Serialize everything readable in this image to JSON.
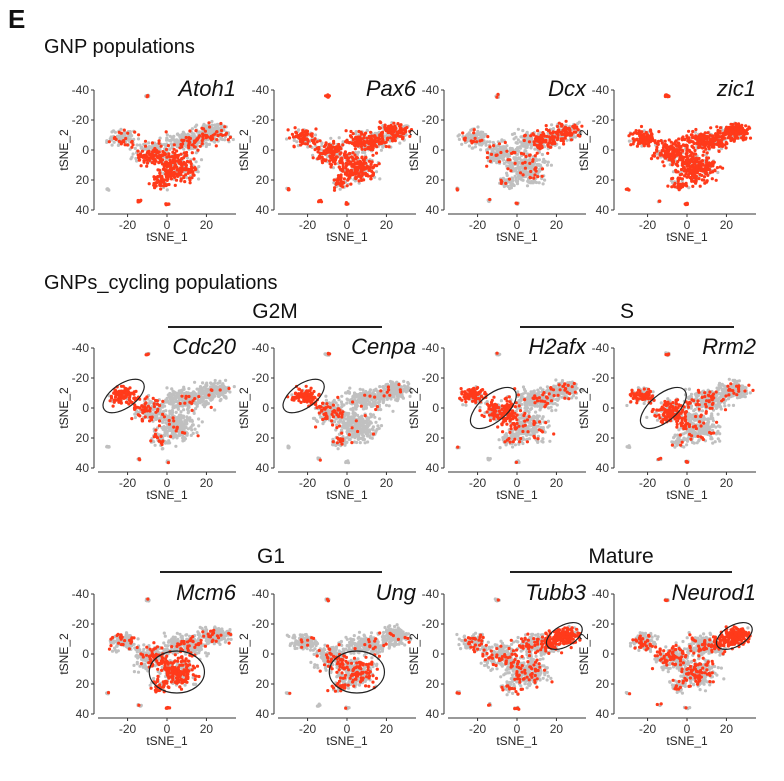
{
  "panel_letter": "E",
  "sections": [
    {
      "title": "GNP populations"
    },
    {
      "title": "GNPs_cycling populations"
    }
  ],
  "groups": [
    {
      "label": "G2M"
    },
    {
      "label": "S"
    },
    {
      "label": "G1"
    },
    {
      "label": "Mature"
    }
  ],
  "colors": {
    "background_cells": "#c0c0c0",
    "expressing_cells": "#ff3a1a",
    "axis": "#333333"
  },
  "chart_data": [
    {
      "type": "scatter",
      "gene": "Atoh1",
      "highlight": "lower-center",
      "circle": null,
      "xlabel": "tSNE_1",
      "ylabel": "tSNE_2",
      "x_ticks": [
        "-20",
        "0",
        "20"
      ],
      "y_ticks": [
        "-40",
        "-20",
        "0",
        "20",
        "40"
      ],
      "xlim": [
        -35,
        35
      ],
      "ylim": [
        -40,
        40
      ]
    },
    {
      "type": "scatter",
      "gene": "Pax6",
      "highlight": "broad",
      "circle": null,
      "xlabel": "tSNE_1",
      "ylabel": "tSNE_2",
      "x_ticks": [
        "-20",
        "0",
        "20"
      ],
      "y_ticks": [
        "-40",
        "-20",
        "0",
        "20",
        "40"
      ],
      "xlim": [
        -35,
        35
      ],
      "ylim": [
        -40,
        40
      ]
    },
    {
      "type": "scatter",
      "gene": "Dcx",
      "highlight": "sparse-right",
      "circle": null,
      "xlabel": "tSNE_1",
      "ylabel": "tSNE_2",
      "x_ticks": [
        "-20",
        "0",
        "20"
      ],
      "y_ticks": [
        "-40",
        "-20",
        "0",
        "20",
        "40"
      ],
      "xlim": [
        -35,
        35
      ],
      "ylim": [
        -40,
        40
      ]
    },
    {
      "type": "scatter",
      "gene": "zic1",
      "highlight": "dense-all",
      "circle": null,
      "xlabel": "tSNE_1",
      "ylabel": "tSNE_2",
      "x_ticks": [
        "-20",
        "0",
        "20"
      ],
      "y_ticks": [
        "-40",
        "-20",
        "0",
        "20",
        "40"
      ],
      "xlim": [
        -35,
        35
      ],
      "ylim": [
        -40,
        40
      ]
    },
    {
      "type": "scatter",
      "gene": "Cdc20",
      "highlight": "left-cluster",
      "circle": {
        "cx": -22,
        "cy": -8,
        "rx": 12,
        "ry": 8,
        "angle": -35
      },
      "xlabel": "tSNE_1",
      "ylabel": "tSNE_2",
      "x_ticks": [
        "-20",
        "0",
        "20"
      ],
      "y_ticks": [
        "-40",
        "-20",
        "0",
        "20",
        "40"
      ],
      "xlim": [
        -35,
        35
      ],
      "ylim": [
        -40,
        40
      ]
    },
    {
      "type": "scatter",
      "gene": "Cenpa",
      "highlight": "left-cluster",
      "circle": {
        "cx": -22,
        "cy": -8,
        "rx": 12,
        "ry": 8,
        "angle": -35
      },
      "xlabel": "tSNE_1",
      "ylabel": "tSNE_2",
      "x_ticks": [
        "-20",
        "0",
        "20"
      ],
      "y_ticks": [
        "-40",
        "-20",
        "0",
        "20",
        "40"
      ],
      "xlim": [
        -35,
        35
      ],
      "ylim": [
        -40,
        40
      ]
    },
    {
      "type": "scatter",
      "gene": "H2afx",
      "highlight": "left-mid",
      "circle": {
        "cx": -12,
        "cy": 0,
        "rx": 14,
        "ry": 9,
        "angle": -40
      },
      "xlabel": "tSNE_1",
      "ylabel": "tSNE_2",
      "x_ticks": [
        "-20",
        "0",
        "20"
      ],
      "y_ticks": [
        "-40",
        "-20",
        "0",
        "20",
        "40"
      ],
      "xlim": [
        -35,
        35
      ],
      "ylim": [
        -40,
        40
      ]
    },
    {
      "type": "scatter",
      "gene": "Rrm2",
      "highlight": "left-mid",
      "circle": {
        "cx": -12,
        "cy": 0,
        "rx": 14,
        "ry": 9,
        "angle": -40
      },
      "xlabel": "tSNE_1",
      "ylabel": "tSNE_2",
      "x_ticks": [
        "-20",
        "0",
        "20"
      ],
      "y_ticks": [
        "-40",
        "-20",
        "0",
        "20",
        "40"
      ],
      "xlim": [
        -35,
        35
      ],
      "ylim": [
        -40,
        40
      ]
    },
    {
      "type": "scatter",
      "gene": "Mcm6",
      "highlight": "center-cluster",
      "circle": {
        "cx": 5,
        "cy": 12,
        "rx": 14,
        "ry": 14,
        "angle": 0
      },
      "xlabel": "tSNE_1",
      "ylabel": "tSNE_2",
      "x_ticks": [
        "-20",
        "0",
        "20"
      ],
      "y_ticks": [
        "-40",
        "-20",
        "0",
        "20",
        "40"
      ],
      "xlim": [
        -35,
        35
      ],
      "ylim": [
        -40,
        40
      ]
    },
    {
      "type": "scatter",
      "gene": "Ung",
      "highlight": "center-sparse",
      "circle": {
        "cx": 5,
        "cy": 12,
        "rx": 14,
        "ry": 14,
        "angle": 0
      },
      "xlabel": "tSNE_1",
      "ylabel": "tSNE_2",
      "x_ticks": [
        "-20",
        "0",
        "20"
      ],
      "y_ticks": [
        "-40",
        "-20",
        "0",
        "20",
        "40"
      ],
      "xlim": [
        -35,
        35
      ],
      "ylim": [
        -40,
        40
      ]
    },
    {
      "type": "scatter",
      "gene": "Tubb3",
      "highlight": "right-cluster",
      "circle": {
        "cx": 24,
        "cy": -12,
        "rx": 10,
        "ry": 7,
        "angle": -30
      },
      "xlabel": "tSNE_1",
      "ylabel": "tSNE_2",
      "x_ticks": [
        "-20",
        "0",
        "20"
      ],
      "y_ticks": [
        "-40",
        "-20",
        "0",
        "20",
        "40"
      ],
      "xlim": [
        -35,
        35
      ],
      "ylim": [
        -40,
        40
      ]
    },
    {
      "type": "scatter",
      "gene": "Neurod1",
      "highlight": "right-cluster",
      "circle": {
        "cx": 24,
        "cy": -12,
        "rx": 10,
        "ry": 7,
        "angle": -30
      },
      "xlabel": "tSNE_1",
      "ylabel": "tSNE_2",
      "x_ticks": [
        "-20",
        "0",
        "20"
      ],
      "y_ticks": [
        "-40",
        "-20",
        "0",
        "20",
        "40"
      ],
      "xlim": [
        -35,
        35
      ],
      "ylim": [
        -40,
        40
      ]
    }
  ]
}
